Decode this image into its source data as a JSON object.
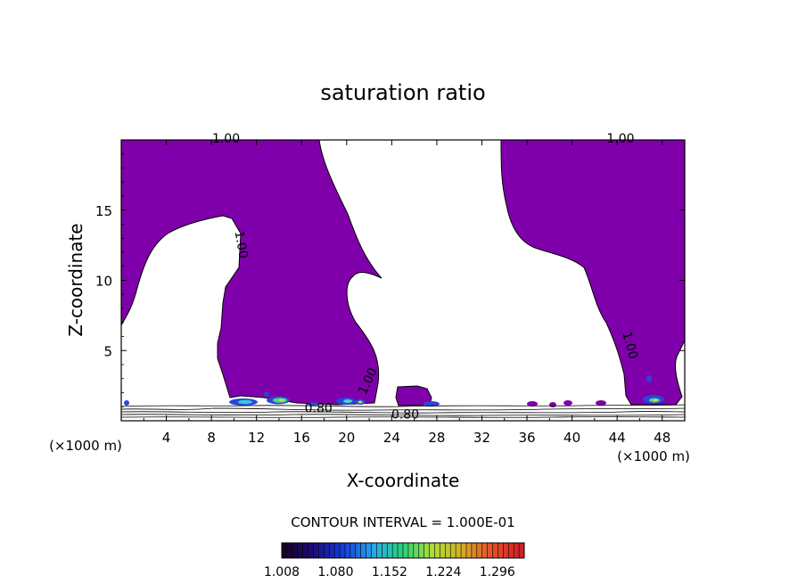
{
  "chart_data": {
    "type": "heatmap",
    "title": "saturation ratio",
    "xlabel": "X-coordinate",
    "ylabel": "Z-coordinate",
    "x_unit": "(×1000 m)",
    "xlim": [
      0,
      50
    ],
    "ylim": [
      0,
      20
    ],
    "xticks": [
      4,
      8,
      12,
      16,
      20,
      24,
      28,
      32,
      36,
      40,
      44,
      48
    ],
    "yticks": [
      5,
      10,
      15
    ],
    "contour_interval_text": "CONTOUR INTERVAL = 1.000E-01",
    "contour_labels": [
      {
        "text": "1.00",
        "x": 9.3,
        "z": 19.8
      },
      {
        "text": "1.00",
        "x": 44.3,
        "z": 19.8
      },
      {
        "text": "1.00",
        "x": 10.3,
        "z": 12.5
      },
      {
        "text": "1.00",
        "x": 44.8,
        "z": 5.3
      },
      {
        "text": "1.00",
        "x": 22.2,
        "z": 2.7
      },
      {
        "text": "0.80",
        "x": 17.5,
        "z": 0.6
      },
      {
        "text": "0.80",
        "x": 25.2,
        "z": 0.15
      }
    ],
    "colorbar": {
      "min": 1.008,
      "max": 1.332,
      "tick_labels": [
        "1.008",
        "1.080",
        "1.152",
        "1.224",
        "1.296"
      ]
    },
    "region_color": "#7f00aa"
  }
}
